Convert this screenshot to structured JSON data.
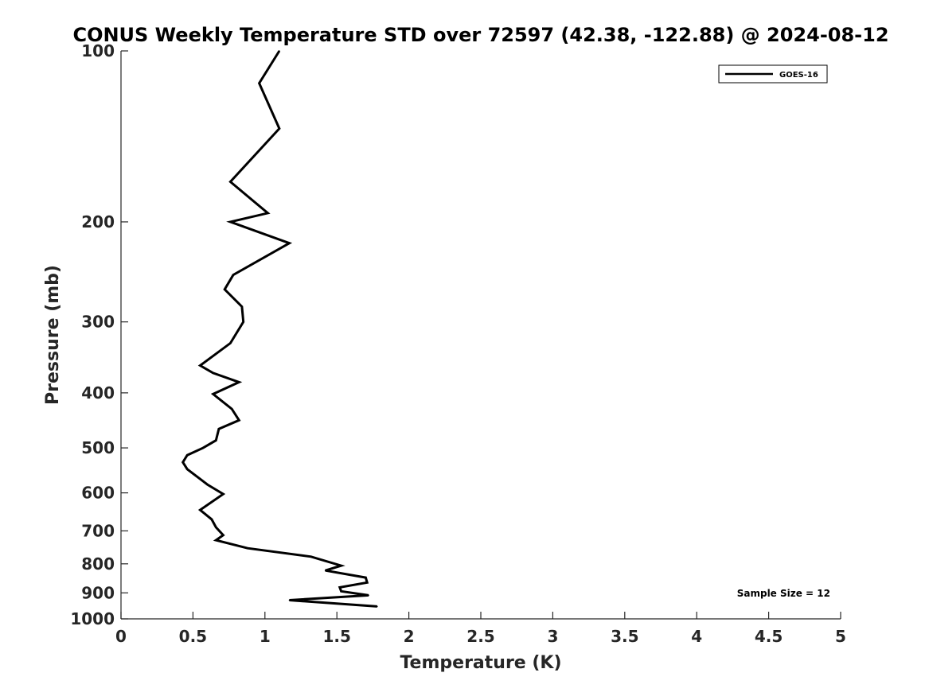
{
  "chart_data": {
    "type": "line",
    "title": "CONUS Weekly Temperature STD over 72597 (42.38, -122.88) @ 2024-08-12",
    "xlabel": "Temperature (K)",
    "ylabel": "Pressure (mb)",
    "xlim": [
      0,
      5
    ],
    "ylim": [
      100,
      1000
    ],
    "yscale": "log",
    "y_inverted": true,
    "grid": false,
    "legend_position": "top-right",
    "x_ticks": [
      0,
      0.5,
      1,
      1.5,
      2,
      2.5,
      3,
      3.5,
      4,
      4.5,
      5
    ],
    "x_tick_labels": [
      "0",
      "0.5",
      "1",
      "1.5",
      "2",
      "2.5",
      "3",
      "3.5",
      "4",
      "4.5",
      "5"
    ],
    "y_ticks": [
      100,
      200,
      300,
      400,
      500,
      600,
      700,
      800,
      900,
      1000
    ],
    "y_tick_labels": [
      "100",
      "200",
      "300",
      "400",
      "500",
      "600",
      "700",
      "800",
      "900",
      "1000"
    ],
    "annotation": "Sample Size = 12",
    "series": [
      {
        "name": "GOES-16",
        "color": "#000000",
        "x": [
          1.1,
          0.96,
          1.1,
          0.76,
          1.02,
          0.76,
          1.17,
          0.78,
          0.72,
          0.84,
          0.85,
          0.76,
          0.55,
          0.64,
          0.82,
          0.64,
          0.77,
          0.82,
          0.68,
          0.66,
          0.57,
          0.46,
          0.43,
          0.46,
          0.6,
          0.71,
          0.55,
          0.63,
          0.66,
          0.71,
          0.66,
          0.88,
          1.32,
          1.53,
          1.42,
          1.7,
          1.71,
          1.52,
          1.53,
          1.72,
          1.17,
          1.78
        ],
        "y": [
          100,
          114,
          137,
          170,
          193,
          200,
          218,
          248,
          263,
          282,
          300,
          327,
          358,
          369,
          383,
          402,
          427,
          447,
          463,
          485,
          500,
          515,
          530,
          545,
          580,
          603,
          643,
          668,
          690,
          712,
          727,
          751,
          777,
          806,
          822,
          846,
          863,
          880,
          894,
          909,
          927,
          951
        ]
      }
    ]
  }
}
